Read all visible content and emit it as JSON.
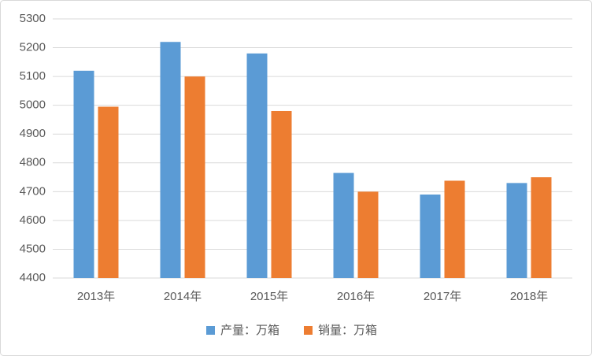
{
  "chart_data": {
    "type": "bar",
    "categories": [
      "2013年",
      "2014年",
      "2015年",
      "2016年",
      "2017年",
      "2018年"
    ],
    "series": [
      {
        "name": "产量：万箱",
        "color": "#5b9bd5",
        "values": [
          5120,
          5220,
          5180,
          4765,
          4690,
          4730
        ]
      },
      {
        "name": "销量：万箱",
        "color": "#ed7d31",
        "values": [
          4995,
          5100,
          4980,
          4700,
          4738,
          4750
        ]
      }
    ],
    "ylim": [
      4400,
      5300
    ],
    "yticks": [
      4400,
      4500,
      4600,
      4700,
      4800,
      4900,
      5000,
      5100,
      5200,
      5300
    ],
    "grid": true,
    "legend": "bottom"
  }
}
